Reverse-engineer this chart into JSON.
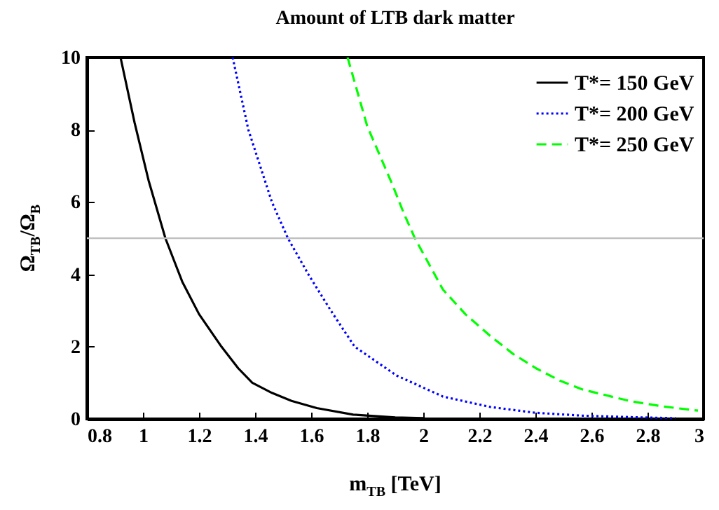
{
  "chart_data": {
    "type": "line",
    "title": "Amount of LTB dark matter",
    "xlabel": "m$_{TB}$ [TeV]",
    "ylabel": "Ω$_{TB}$/Ω$_{B}$",
    "xlim": [
      0.8,
      3
    ],
    "xticks": [
      0.8,
      1,
      1.2,
      1.4,
      1.6,
      1.8,
      2,
      2.2,
      2.4,
      2.6,
      2.8,
      3
    ],
    "ylim": [
      0,
      10
    ],
    "yticks": [
      0,
      2,
      4,
      6,
      8,
      10
    ],
    "grid": false,
    "legend": "top right",
    "marker": "none",
    "ref_lines": [
      {
        "axis": "y",
        "value": 5,
        "color": "#c0c0c0",
        "line_style": "solid"
      }
    ],
    "series": [
      {
        "name": "T*= 150 GeV",
        "color": "#000000",
        "line_style": "solid",
        "x": [
          0.92,
          0.97,
          1.02,
          1.08,
          1.14,
          1.2,
          1.28,
          1.34,
          1.39,
          1.46,
          1.53,
          1.62,
          1.75,
          1.9,
          2.0
        ],
        "values": [
          10,
          8.2,
          6.6,
          5,
          3.8,
          2.9,
          2,
          1.4,
          1,
          0.72,
          0.5,
          0.3,
          0.12,
          0.04,
          0.02
        ]
      },
      {
        "name": "T*= 200 GeV",
        "color": "#0000ff",
        "line_style": "dotted",
        "x": [
          1.32,
          1.376,
          1.46,
          1.517,
          1.59,
          1.67,
          1.755,
          1.83,
          1.905,
          2.07,
          2.24,
          2.4,
          2.57,
          2.74,
          2.9
        ],
        "values": [
          10,
          8,
          6,
          5,
          4,
          3,
          2,
          1.6,
          1.2,
          0.62,
          0.33,
          0.17,
          0.09,
          0.05,
          0.02
        ]
      },
      {
        "name": "T*= 250 GeV",
        "color": "#00ff00",
        "line_style": "dashed",
        "x": [
          1.73,
          1.8,
          1.89,
          1.93,
          1.97,
          2.07,
          2.15,
          2.24,
          2.32,
          2.405,
          2.49,
          2.57,
          2.74,
          2.86,
          2.98
        ],
        "values": [
          10,
          8.1,
          6.48,
          5.7,
          5,
          3.58,
          2.9,
          2.29,
          1.8,
          1.39,
          1.05,
          0.81,
          0.49,
          0.34,
          0.23
        ]
      }
    ]
  }
}
